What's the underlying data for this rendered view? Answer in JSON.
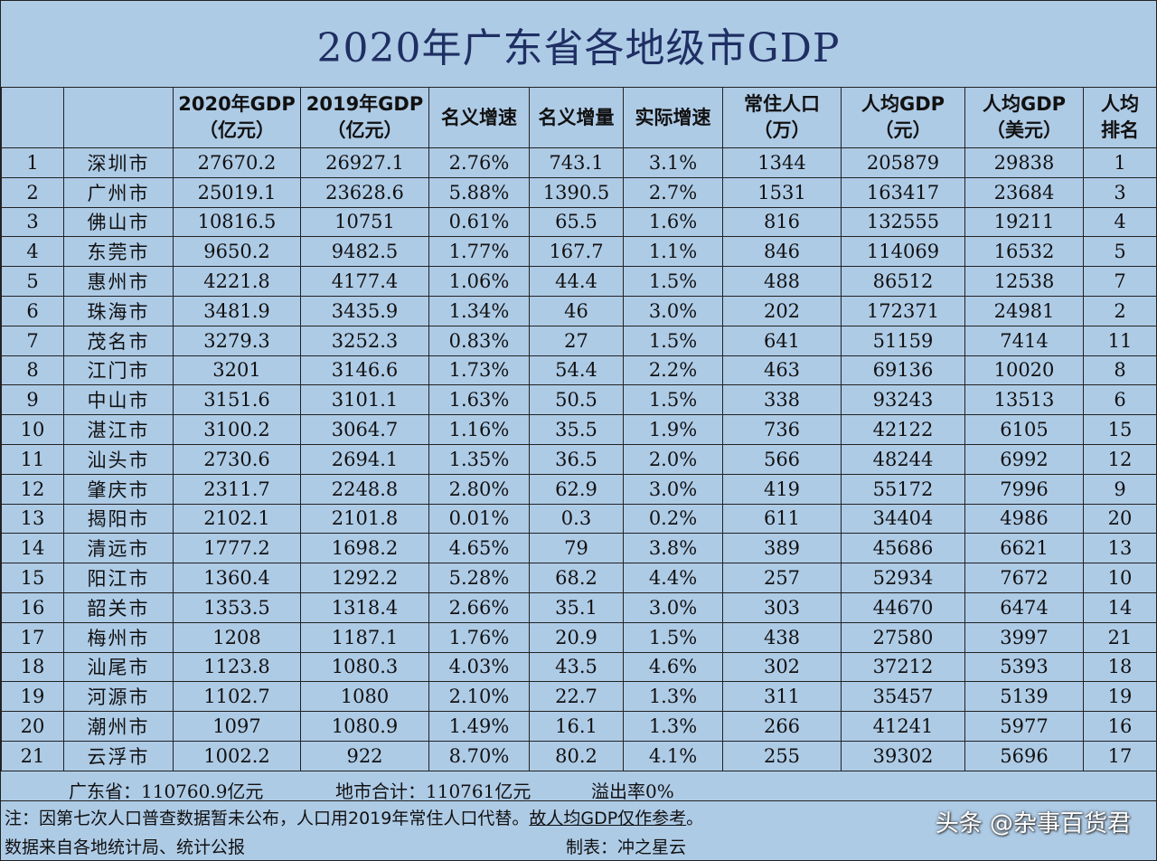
{
  "title": "2020年广东省各地级市GDP",
  "headers": [
    [
      "",
      ""
    ],
    [
      "",
      ""
    ],
    [
      "2020年GDP",
      "（亿元）"
    ],
    [
      "2019年GDP",
      "（亿元）"
    ],
    [
      "名义增速",
      ""
    ],
    [
      "名义增量",
      ""
    ],
    [
      "实际增速",
      ""
    ],
    [
      "常住人口",
      "（万）"
    ],
    [
      "人均GDP",
      "（元）"
    ],
    [
      "人均GDP",
      "（美元）"
    ],
    [
      "人均",
      "排名"
    ]
  ],
  "rows": [
    [
      "1",
      "深圳市",
      "27670.2",
      "26927.1",
      "2.76%",
      "743.1",
      "3.1%",
      "1344",
      "205879",
      "29838",
      "1"
    ],
    [
      "2",
      "广州市",
      "25019.1",
      "23628.6",
      "5.88%",
      "1390.5",
      "2.7%",
      "1531",
      "163417",
      "23684",
      "3"
    ],
    [
      "3",
      "佛山市",
      "10816.5",
      "10751",
      "0.61%",
      "65.5",
      "1.6%",
      "816",
      "132555",
      "19211",
      "4"
    ],
    [
      "4",
      "东莞市",
      "9650.2",
      "9482.5",
      "1.77%",
      "167.7",
      "1.1%",
      "846",
      "114069",
      "16532",
      "5"
    ],
    [
      "5",
      "惠州市",
      "4221.8",
      "4177.4",
      "1.06%",
      "44.4",
      "1.5%",
      "488",
      "86512",
      "12538",
      "7"
    ],
    [
      "6",
      "珠海市",
      "3481.9",
      "3435.9",
      "1.34%",
      "46",
      "3.0%",
      "202",
      "172371",
      "24981",
      "2"
    ],
    [
      "7",
      "茂名市",
      "3279.3",
      "3252.3",
      "0.83%",
      "27",
      "1.5%",
      "641",
      "51159",
      "7414",
      "11"
    ],
    [
      "8",
      "江门市",
      "3201",
      "3146.6",
      "1.73%",
      "54.4",
      "2.2%",
      "463",
      "69136",
      "10020",
      "8"
    ],
    [
      "9",
      "中山市",
      "3151.6",
      "3101.1",
      "1.63%",
      "50.5",
      "1.5%",
      "338",
      "93243",
      "13513",
      "6"
    ],
    [
      "10",
      "湛江市",
      "3100.2",
      "3064.7",
      "1.16%",
      "35.5",
      "1.9%",
      "736",
      "42122",
      "6105",
      "15"
    ],
    [
      "11",
      "汕头市",
      "2730.6",
      "2694.1",
      "1.35%",
      "36.5",
      "2.0%",
      "566",
      "48244",
      "6992",
      "12"
    ],
    [
      "12",
      "肇庆市",
      "2311.7",
      "2248.8",
      "2.80%",
      "62.9",
      "3.0%",
      "419",
      "55172",
      "7996",
      "9"
    ],
    [
      "13",
      "揭阳市",
      "2102.1",
      "2101.8",
      "0.01%",
      "0.3",
      "0.2%",
      "611",
      "34404",
      "4986",
      "20"
    ],
    [
      "14",
      "清远市",
      "1777.2",
      "1698.2",
      "4.65%",
      "79",
      "3.8%",
      "389",
      "45686",
      "6621",
      "13"
    ],
    [
      "15",
      "阳江市",
      "1360.4",
      "1292.2",
      "5.28%",
      "68.2",
      "4.4%",
      "257",
      "52934",
      "7672",
      "10"
    ],
    [
      "16",
      "韶关市",
      "1353.5",
      "1318.4",
      "2.66%",
      "35.1",
      "3.0%",
      "303",
      "44670",
      "6474",
      "14"
    ],
    [
      "17",
      "梅州市",
      "1208",
      "1187.1",
      "1.76%",
      "20.9",
      "1.5%",
      "438",
      "27580",
      "3997",
      "21"
    ],
    [
      "18",
      "汕尾市",
      "1123.8",
      "1080.3",
      "4.03%",
      "43.5",
      "4.6%",
      "302",
      "37212",
      "5393",
      "18"
    ],
    [
      "19",
      "河源市",
      "1102.7",
      "1080",
      "2.10%",
      "22.7",
      "1.3%",
      "311",
      "35457",
      "5139",
      "19"
    ],
    [
      "20",
      "潮州市",
      "1097",
      "1080.9",
      "1.49%",
      "16.1",
      "1.3%",
      "266",
      "41241",
      "5977",
      "16"
    ],
    [
      "21",
      "云浮市",
      "1002.2",
      "922",
      "8.70%",
      "80.2",
      "4.1%",
      "255",
      "39302",
      "5696",
      "17"
    ]
  ],
  "summary": {
    "province": "广东省：110760.9亿元",
    "city_total": "地市合计：110761亿元",
    "overflow": "溢出率0%"
  },
  "notes": {
    "line1_prefix": "注：因第七次人口普查数据暂未公布，人口用2019年常住人口代替。",
    "line1_underlined": "故人均GDP仅作参考",
    "line1_suffix": "。",
    "line2": "数据来自各地统计局、统计公报",
    "credit": "制表：冲之星云"
  },
  "watermark": "头条 @杂事百货君"
}
